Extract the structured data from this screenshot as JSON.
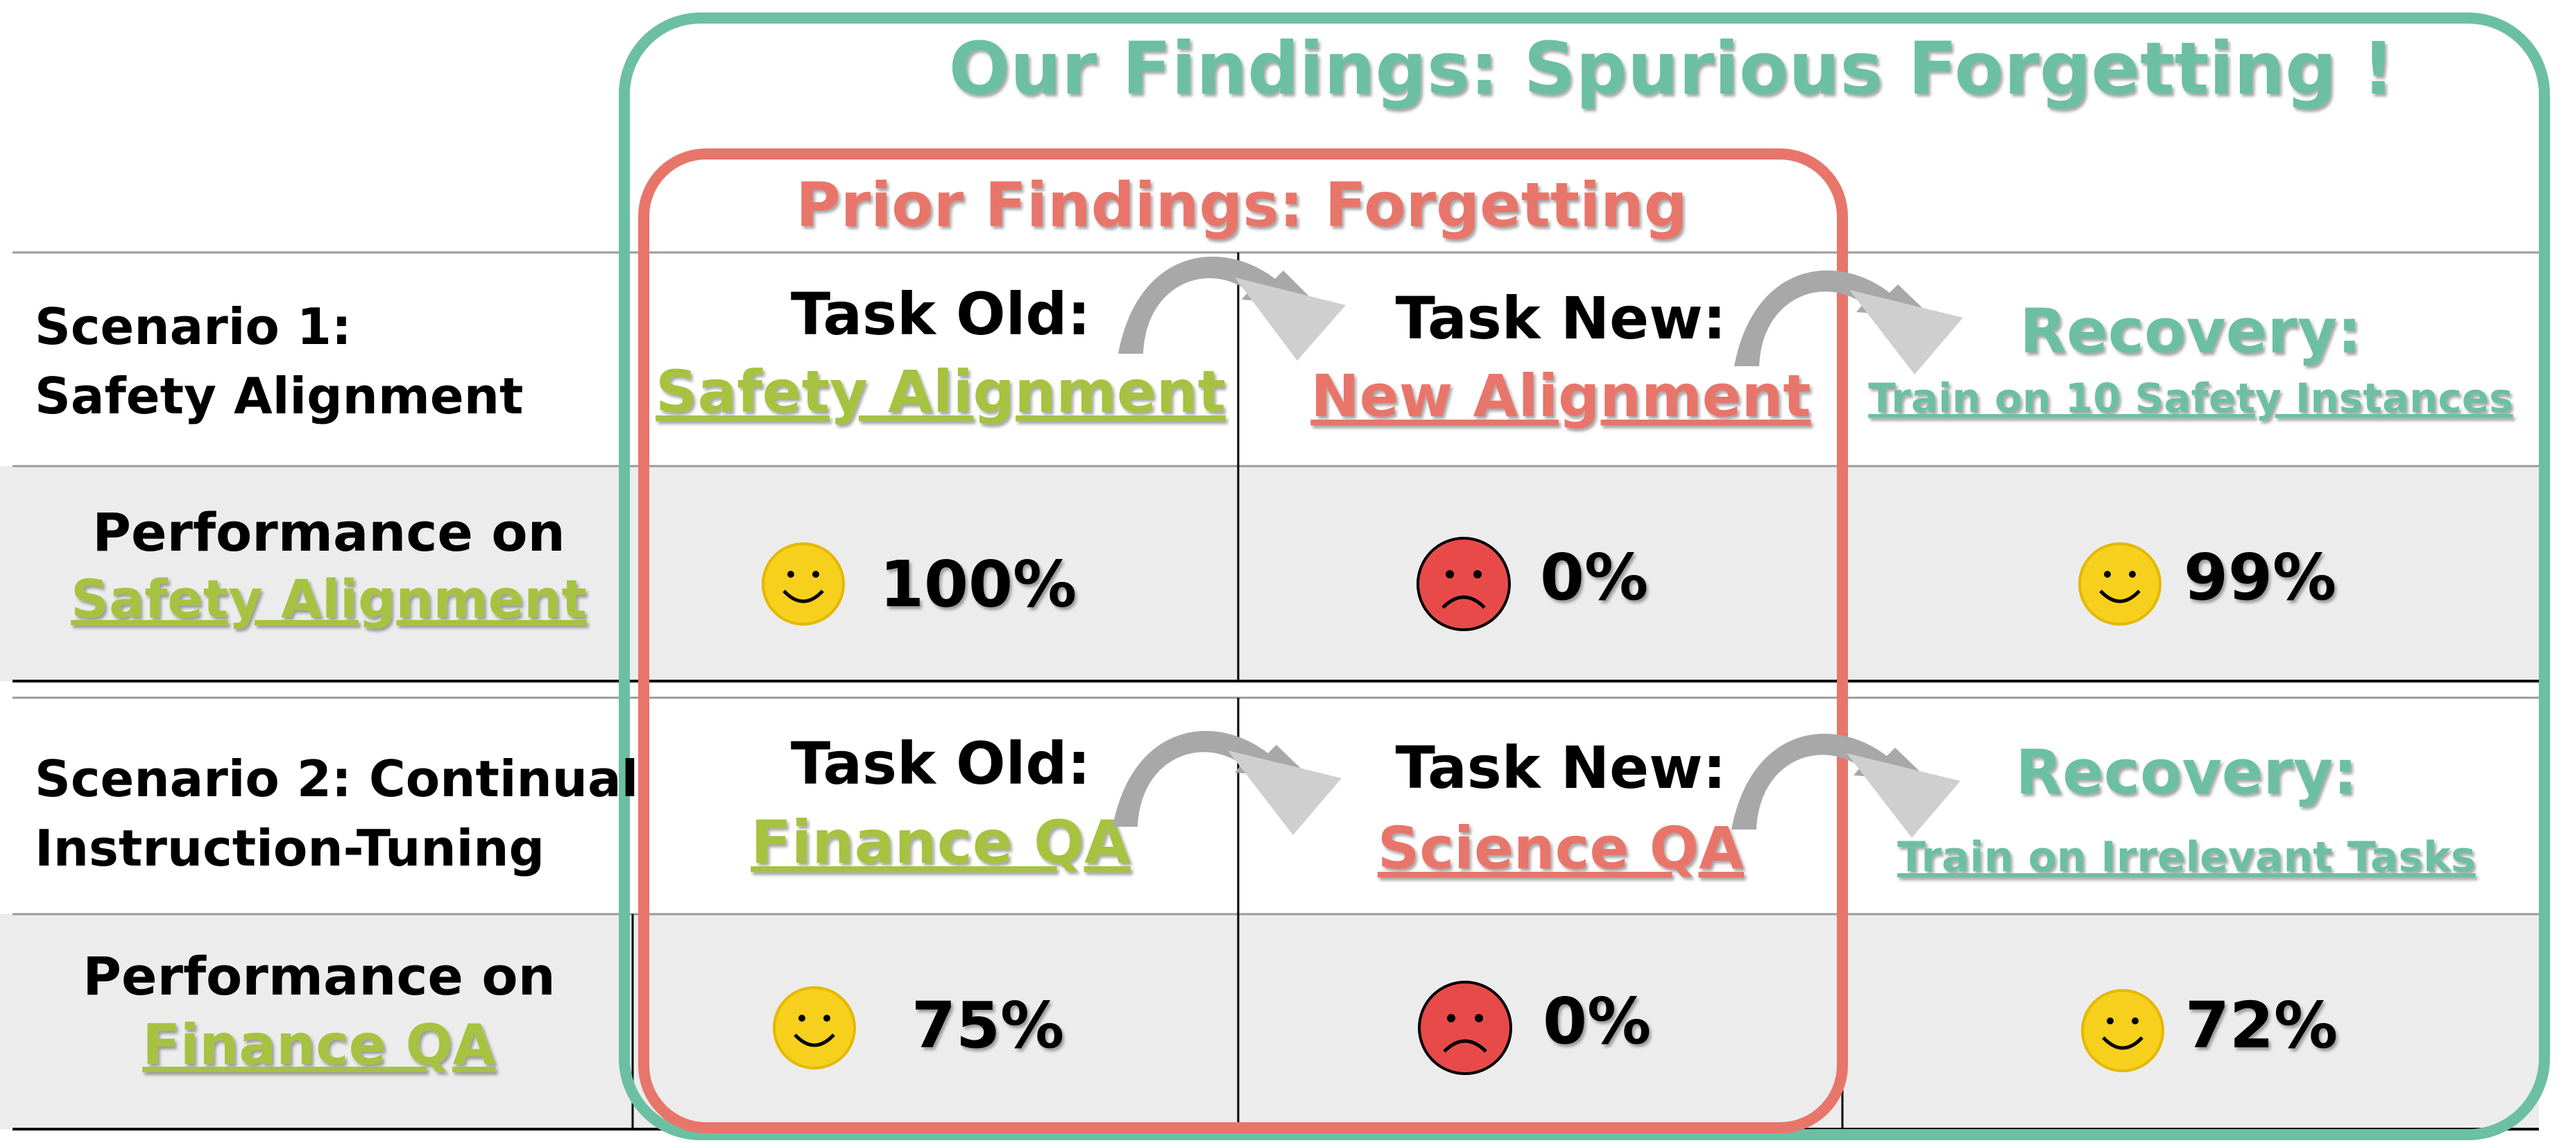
{
  "titles": {
    "our_findings": "Our Findings: Spurious Forgetting !",
    "prior_findings": "Prior Findings: Forgetting"
  },
  "scenario1": {
    "label_line1": "Scenario 1:",
    "label_line2": "Safety Alignment",
    "task_old_heading": "Task Old:",
    "task_old_name": "Safety Alignment",
    "task_new_heading": "Task New:",
    "task_new_name": "New Alignment",
    "recovery_heading": "Recovery:",
    "recovery_detail": "Train on 10 Safety Instances",
    "performance_label_line1": "Performance on",
    "performance_label_line2": "Safety Alignment",
    "perf_old": "100%",
    "perf_new": "0%",
    "perf_recovery": "99%"
  },
  "scenario2": {
    "label_line1": "Scenario 2: Continual",
    "label_line2": "Instruction-Tuning",
    "task_old_heading": "Task Old:",
    "task_old_name": "Finance QA",
    "task_new_heading": "Task New:",
    "task_new_name": "Science QA",
    "recovery_heading": "Recovery:",
    "recovery_detail": "Train on Irrelevant Tasks",
    "performance_label_line1": "Performance on",
    "performance_label_line2": "Finance QA",
    "perf_old": "75%",
    "perf_new": "0%",
    "perf_recovery": "72%"
  },
  "icons": {
    "happy": "smiley-face-icon",
    "sad": "sad-face-icon",
    "arrow": "curved-arrow-icon"
  },
  "colors": {
    "teal": "#6cbfa3",
    "salmon": "#e8756a",
    "lime": "#a6c23f",
    "grey_row": "#ececec",
    "smiley_yellow": "#f7cf1d",
    "sad_red": "#e84a4a",
    "arrow_grey": "#a8a8a8"
  }
}
